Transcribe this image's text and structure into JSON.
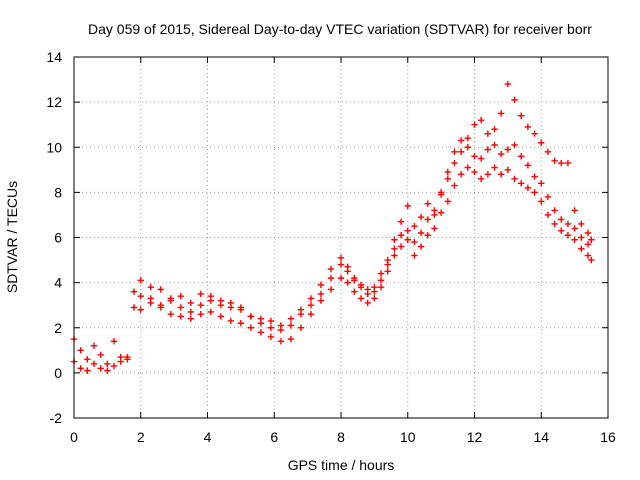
{
  "chart_data": {
    "type": "scatter",
    "title": "Day 059 of 2015, Sidereal Day-to-day VTEC variation (SDTVAR) for receiver borr",
    "xlabel": "GPS time / hours",
    "ylabel": "SDTVAR / TECUs",
    "xlim": [
      0,
      16
    ],
    "ylim": [
      -2,
      14
    ],
    "xticks": [
      "0",
      "2",
      "4",
      "6",
      "8",
      "10",
      "12",
      "14",
      "16"
    ],
    "yticks": [
      "-2",
      "0",
      "2",
      "4",
      "6",
      "8",
      "10",
      "12",
      "14"
    ],
    "grid": true,
    "marker": "plus",
    "colors": {
      "series": "#ff0000",
      "grid": "#a0a0a0"
    },
    "series": [
      {
        "x": [
          0.0,
          0.2,
          0.4,
          0.6,
          0.8,
          1.0,
          1.2,
          1.4,
          1.6,
          1.8,
          2.0,
          2.3,
          2.6,
          2.9,
          3.2,
          3.5,
          3.8,
          4.1,
          4.4,
          4.7,
          5.0,
          5.3,
          5.6,
          5.9,
          6.2,
          6.5,
          6.8,
          7.1,
          7.4,
          7.7,
          8.0,
          8.2,
          8.4,
          8.6,
          8.8,
          9.0,
          9.2,
          9.4,
          9.6,
          9.8,
          10.0,
          10.2,
          10.4,
          10.6,
          10.8,
          11.0,
          11.2,
          11.4,
          11.6,
          11.8,
          12.0,
          12.2,
          12.4,
          12.6,
          12.8,
          13.0,
          13.2,
          13.4,
          13.6,
          13.8,
          14.0,
          14.2,
          14.4,
          14.6,
          14.8,
          15.0,
          15.2,
          15.4,
          15.5
        ],
        "y": [
          1.5,
          1.0,
          0.6,
          1.2,
          0.8,
          0.4,
          1.4,
          0.7,
          0.6,
          3.6,
          4.1,
          3.8,
          3.7,
          3.3,
          3.4,
          3.1,
          3.5,
          3.2,
          3.0,
          2.9,
          2.8,
          2.5,
          2.4,
          2.3,
          2.1,
          2.4,
          2.8,
          3.3,
          3.9,
          4.6,
          5.1,
          4.7,
          4.2,
          3.9,
          3.7,
          3.8,
          4.4,
          5.0,
          5.9,
          6.7,
          7.4,
          6.5,
          6.9,
          7.5,
          7.2,
          8.0,
          8.6,
          9.3,
          9.8,
          10.4,
          11.0,
          11.2,
          10.6,
          10.8,
          11.5,
          12.8,
          12.1,
          11.4,
          10.9,
          10.6,
          10.2,
          9.8,
          9.4,
          9.3,
          9.3,
          7.2,
          6.6,
          6.2,
          5.9
        ]
      },
      {
        "x": [
          0.0,
          0.2,
          0.4,
          0.6,
          0.8,
          1.0,
          1.2,
          1.4,
          1.6,
          1.8,
          2.0,
          2.3,
          2.6,
          2.9,
          3.2,
          3.5,
          3.8,
          4.1,
          4.4,
          4.7,
          5.0,
          5.3,
          5.6,
          5.9,
          6.2,
          6.5,
          6.8,
          7.1,
          7.4,
          7.7,
          8.0,
          8.2,
          8.4,
          8.6,
          8.8,
          9.0,
          9.2,
          9.4,
          9.6,
          9.8,
          10.0,
          10.2,
          10.4,
          10.6,
          10.8,
          11.0,
          11.2,
          11.4,
          11.6,
          11.8,
          12.0,
          12.2,
          12.4,
          12.6,
          12.8,
          13.0,
          13.2,
          13.4,
          13.6,
          13.8,
          14.0,
          14.2,
          14.4,
          14.6,
          14.8,
          15.0,
          15.2,
          15.4,
          15.5
        ],
        "y": [
          0.5,
          0.2,
          0.1,
          0.4,
          0.2,
          0.1,
          0.3,
          0.5,
          0.7,
          2.9,
          2.8,
          3.1,
          2.9,
          2.6,
          2.5,
          2.4,
          2.6,
          2.7,
          2.5,
          2.3,
          2.2,
          2.0,
          1.8,
          1.6,
          1.4,
          1.5,
          2.0,
          2.6,
          3.2,
          3.7,
          4.2,
          4.0,
          3.6,
          3.3,
          3.1,
          3.3,
          3.8,
          4.5,
          5.2,
          5.6,
          5.9,
          5.2,
          5.6,
          6.1,
          6.4,
          7.1,
          7.6,
          8.3,
          8.8,
          9.1,
          8.9,
          8.6,
          8.8,
          9.1,
          8.8,
          9.0,
          8.6,
          8.4,
          8.2,
          8.0,
          7.6,
          7.0,
          6.6,
          6.3,
          6.1,
          5.9,
          5.5,
          5.2,
          5.0
        ]
      },
      {
        "x": [
          2.0,
          2.3,
          2.6,
          2.9,
          3.2,
          3.5,
          3.8,
          4.1,
          4.4,
          4.7,
          5.0,
          5.3,
          5.6,
          5.9,
          6.2,
          6.5,
          6.8,
          7.1,
          7.4,
          7.7,
          8.0,
          8.2,
          8.4,
          8.6,
          8.8,
          9.0,
          9.2,
          9.4,
          9.6,
          9.8,
          10.0,
          10.2,
          10.4,
          10.6,
          10.8,
          11.0,
          11.2,
          11.4,
          11.6,
          11.8,
          12.0,
          12.2,
          12.4,
          12.6,
          12.8,
          13.0,
          13.2,
          13.4,
          13.6,
          13.8,
          14.0,
          14.2,
          14.4,
          14.6,
          14.8,
          15.0,
          15.2,
          15.4
        ],
        "y": [
          3.4,
          3.3,
          3.0,
          3.2,
          2.9,
          2.7,
          3.0,
          3.4,
          3.2,
          3.1,
          2.9,
          2.5,
          2.2,
          2.0,
          1.9,
          2.1,
          2.6,
          3.0,
          3.5,
          4.2,
          4.8,
          4.5,
          4.1,
          3.8,
          3.5,
          3.6,
          4.1,
          4.8,
          5.5,
          6.1,
          6.3,
          5.8,
          6.2,
          6.8,
          7.0,
          7.9,
          8.9,
          9.8,
          10.3,
          10.0,
          9.6,
          9.5,
          9.9,
          10.1,
          9.7,
          9.9,
          10.1,
          9.6,
          9.2,
          8.7,
          8.4,
          7.8,
          7.2,
          6.8,
          6.6,
          6.4,
          6.0,
          5.7
        ]
      }
    ]
  }
}
